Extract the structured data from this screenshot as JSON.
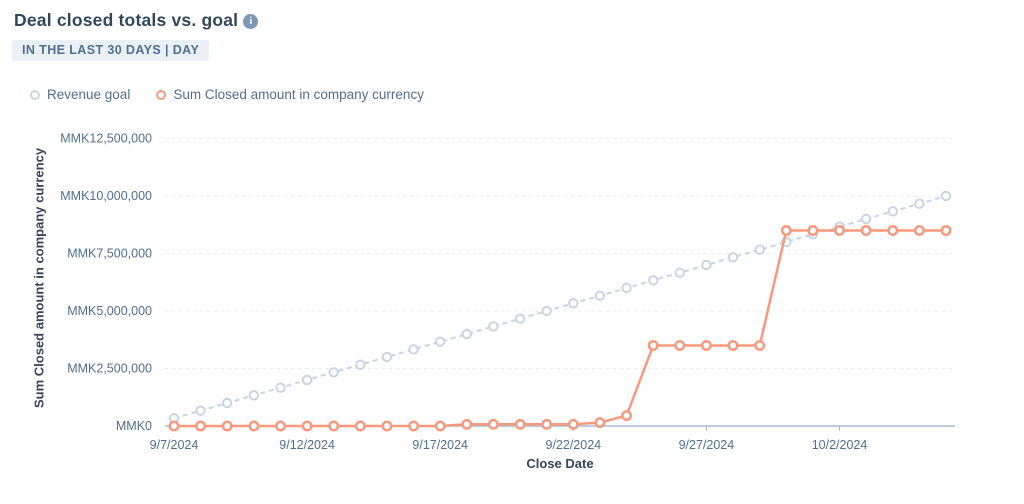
{
  "header": {
    "title": "Deal closed totals vs. goal",
    "range_badge": "IN THE LAST 30 DAYS | DAY",
    "info_glyph": "i"
  },
  "legend": {
    "items": [
      {
        "label": "Revenue goal",
        "color": "#c9d4e2"
      },
      {
        "label": "Sum Closed amount in company currency",
        "color": "#f8997f"
      }
    ]
  },
  "chart_data": {
    "type": "line",
    "title": "Deal closed totals vs. goal",
    "xlabel": "Close Date",
    "ylabel": "Sum Closed amount in company currency",
    "x": [
      "9/7/2024",
      "9/8/2024",
      "9/9/2024",
      "9/10/2024",
      "9/11/2024",
      "9/12/2024",
      "9/13/2024",
      "9/14/2024",
      "9/15/2024",
      "9/16/2024",
      "9/17/2024",
      "9/18/2024",
      "9/19/2024",
      "9/20/2024",
      "9/21/2024",
      "9/22/2024",
      "9/23/2024",
      "9/24/2024",
      "9/25/2024",
      "9/26/2024",
      "9/27/2024",
      "9/28/2024",
      "9/29/2024",
      "9/30/2024",
      "10/1/2024",
      "10/2/2024",
      "10/3/2024",
      "10/4/2024",
      "10/5/2024",
      "10/6/2024"
    ],
    "series": [
      {
        "name": "Revenue goal",
        "color": "#c9d4e2",
        "dashed": true,
        "values": [
          333333,
          666667,
          1000000,
          1333333,
          1666667,
          2000000,
          2333333,
          2666667,
          3000000,
          3333333,
          3666667,
          4000000,
          4333333,
          4666667,
          5000000,
          5333333,
          5666667,
          6000000,
          6333333,
          6666667,
          7000000,
          7333333,
          7666667,
          8000000,
          8333333,
          8666667,
          9000000,
          9333333,
          9666667,
          10000000
        ]
      },
      {
        "name": "Sum Closed amount in company currency",
        "color": "#f8997f",
        "dashed": false,
        "values": [
          0,
          0,
          0,
          0,
          0,
          0,
          0,
          0,
          0,
          0,
          0,
          75000,
          75000,
          75000,
          75000,
          75000,
          150000,
          450000,
          3500000,
          3500000,
          3500000,
          3500000,
          3500000,
          8500000,
          8500000,
          8500000,
          8500000,
          8500000,
          8500000,
          8500000
        ]
      }
    ],
    "ylim": [
      0,
      12500000
    ],
    "y_ticks": [
      {
        "value": 0,
        "label": "MMK0"
      },
      {
        "value": 2500000,
        "label": "MMK2,500,000"
      },
      {
        "value": 5000000,
        "label": "MMK5,000,000"
      },
      {
        "value": 7500000,
        "label": "MMK7,500,000"
      },
      {
        "value": 10000000,
        "label": "MMK10,000,000"
      },
      {
        "value": 12500000,
        "label": "MMK12,500,000"
      }
    ],
    "x_ticks": [
      {
        "index": 0,
        "label": "9/7/2024"
      },
      {
        "index": 5,
        "label": "9/12/2024"
      },
      {
        "index": 10,
        "label": "9/17/2024"
      },
      {
        "index": 15,
        "label": "9/22/2024"
      },
      {
        "index": 20,
        "label": "9/27/2024"
      },
      {
        "index": 25,
        "label": "10/2/2024"
      }
    ],
    "grid": "horizontal-dashed",
    "legend_position": "top-left"
  },
  "colors": {
    "title_text": "#33475b",
    "muted_text": "#516f90",
    "badge_bg": "#eaf0f6",
    "gridline": "#e5ecf3",
    "axis_line": "#a9bccd",
    "info_icon_bg": "#7c98b6"
  }
}
